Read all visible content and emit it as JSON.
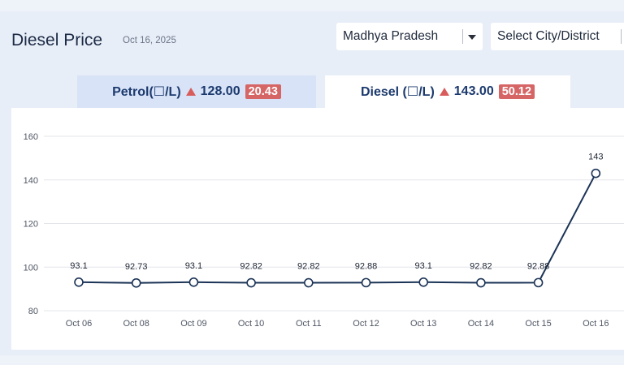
{
  "header": {
    "title": "Diesel Price",
    "date": "Oct 16, 2025"
  },
  "filters": {
    "state": "Madhya Pradesh",
    "city": "Select City/District"
  },
  "tabs": [
    {
      "label": "Petrol(☐/L)",
      "price": "128.00",
      "change": "20.43",
      "trend": "up"
    },
    {
      "label": "Diesel (☐/L)",
      "price": "143.00",
      "change": "50.12",
      "trend": "up",
      "active": true
    }
  ],
  "colors": {
    "line": "#1b3356",
    "badge": "#d66565",
    "up_arrow": "#d85c5c",
    "grid": "#e3e5ea"
  },
  "chart_data": {
    "type": "line",
    "categories": [
      "Oct 06",
      "Oct 08",
      "Oct 09",
      "Oct 10",
      "Oct 11",
      "Oct 12",
      "Oct 13",
      "Oct 14",
      "Oct 15",
      "Oct 16"
    ],
    "series": [
      {
        "values": [
          93.1,
          92.73,
          93.1,
          92.82,
          92.82,
          92.88,
          93.1,
          92.82,
          92.88,
          143
        ]
      }
    ],
    "data_labels": [
      "93.1",
      "92.73",
      "93.1",
      "92.82",
      "92.82",
      "92.88",
      "93.1",
      "92.82",
      "92.88",
      "143"
    ],
    "yticks": [
      80,
      100,
      120,
      140,
      160
    ],
    "ylim": [
      80,
      160
    ],
    "grid": true
  }
}
